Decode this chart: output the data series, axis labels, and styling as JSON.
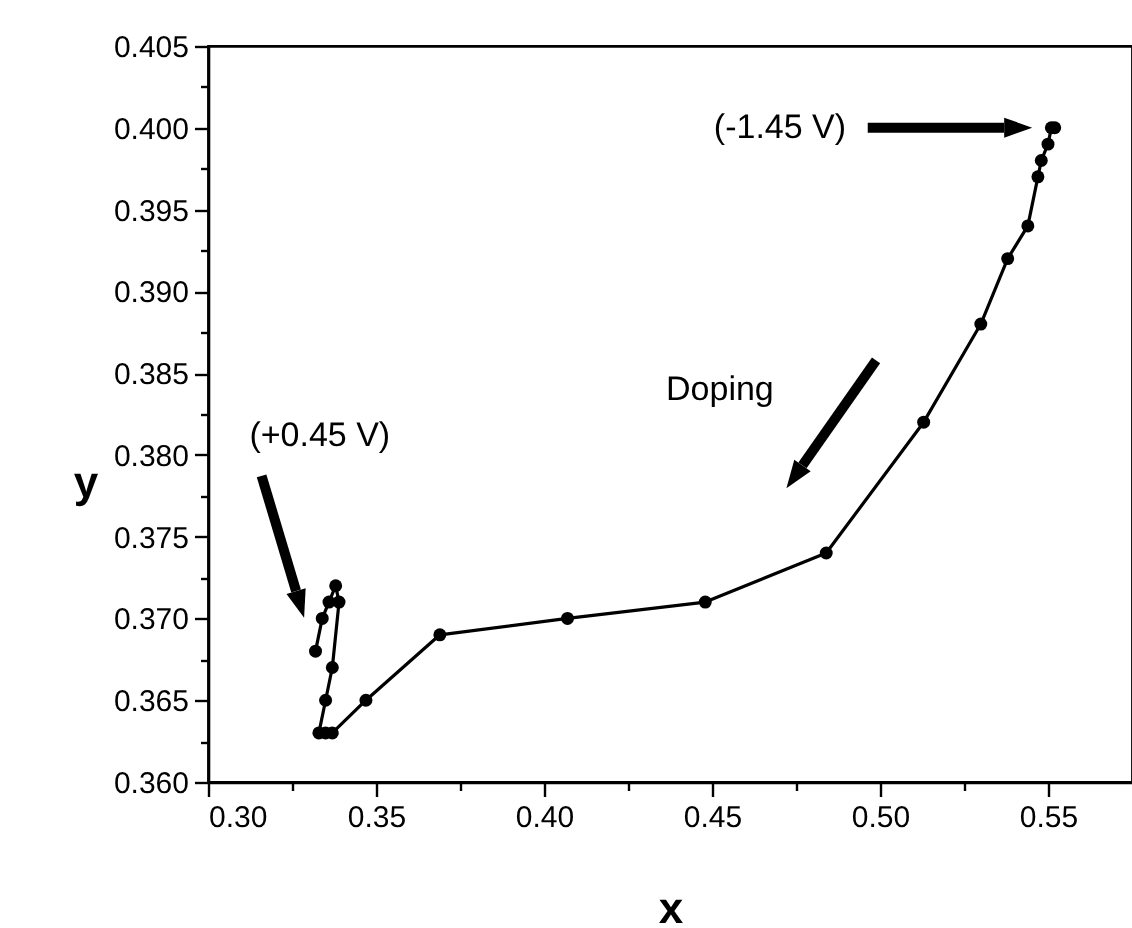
{
  "chart_data": {
    "type": "line",
    "xlabel": "x",
    "ylabel": "y",
    "x": [
      0.552,
      0.551,
      0.55,
      0.548,
      0.547,
      0.544,
      0.538,
      0.53,
      0.513,
      0.484,
      0.448,
      0.407,
      0.369,
      0.347,
      0.337,
      0.335,
      0.333,
      0.335,
      0.337,
      0.339,
      0.338,
      0.336,
      0.334,
      0.332
    ],
    "series": [
      {
        "color": "#000000",
        "values": [
          0.4,
          0.4,
          0.399,
          0.398,
          0.397,
          0.394,
          0.392,
          0.388,
          0.382,
          0.374,
          0.371,
          0.37,
          0.369,
          0.365,
          0.363,
          0.363,
          0.363,
          0.365,
          0.367,
          0.371,
          0.372,
          0.371,
          0.37,
          0.368
        ]
      }
    ],
    "xlim": [
      0.3,
      0.575
    ],
    "ylim": [
      0.36,
      0.405
    ],
    "xticks": [
      {
        "value": 0.3,
        "label": "0.30"
      },
      {
        "value": 0.325,
        "label": null
      },
      {
        "value": 0.35,
        "label": "0.35"
      },
      {
        "value": 0.375,
        "label": null
      },
      {
        "value": 0.4,
        "label": "0.40"
      },
      {
        "value": 0.425,
        "label": null
      },
      {
        "value": 0.45,
        "label": "0.45"
      },
      {
        "value": 0.475,
        "label": null
      },
      {
        "value": 0.5,
        "label": "0.50"
      },
      {
        "value": 0.525,
        "label": null
      },
      {
        "value": 0.55,
        "label": "0.55"
      }
    ],
    "yticks": [
      {
        "value": 0.36,
        "label": "0.360"
      },
      {
        "value": 0.3625,
        "label": null
      },
      {
        "value": 0.365,
        "label": "0.365"
      },
      {
        "value": 0.3675,
        "label": null
      },
      {
        "value": 0.37,
        "label": "0.370"
      },
      {
        "value": 0.3725,
        "label": null
      },
      {
        "value": 0.375,
        "label": "0.375"
      },
      {
        "value": 0.3775,
        "label": null
      },
      {
        "value": 0.38,
        "label": "0.380"
      },
      {
        "value": 0.3825,
        "label": null
      },
      {
        "value": 0.385,
        "label": "0.385"
      },
      {
        "value": 0.3875,
        "label": null
      },
      {
        "value": 0.39,
        "label": "0.390"
      },
      {
        "value": 0.3925,
        "label": null
      },
      {
        "value": 0.395,
        "label": "0.395"
      },
      {
        "value": 0.3975,
        "label": null
      },
      {
        "value": 0.4,
        "label": "0.400"
      },
      {
        "value": 0.4025,
        "label": null
      },
      {
        "value": 0.405,
        "label": "0.405"
      }
    ],
    "marker": "circle",
    "line_style": "solid",
    "grid": false,
    "annotations": [
      "(-1.45 V)",
      "(+0.45 V)",
      "Doping"
    ]
  }
}
